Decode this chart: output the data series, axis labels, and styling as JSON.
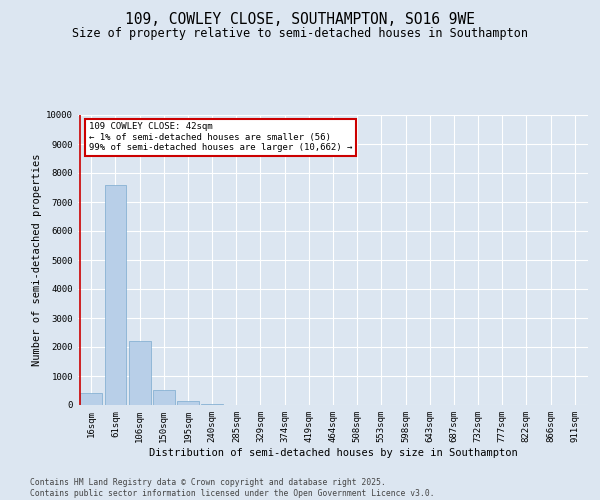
{
  "title": "109, COWLEY CLOSE, SOUTHAMPTON, SO16 9WE",
  "subtitle": "Size of property relative to semi-detached houses in Southampton",
  "xlabel": "Distribution of semi-detached houses by size in Southampton",
  "ylabel": "Number of semi-detached properties",
  "categories": [
    "16sqm",
    "61sqm",
    "106sqm",
    "150sqm",
    "195sqm",
    "240sqm",
    "285sqm",
    "329sqm",
    "374sqm",
    "419sqm",
    "464sqm",
    "508sqm",
    "553sqm",
    "598sqm",
    "643sqm",
    "687sqm",
    "732sqm",
    "777sqm",
    "822sqm",
    "866sqm",
    "911sqm"
  ],
  "values": [
    430,
    7600,
    2200,
    530,
    150,
    50,
    15,
    5,
    2,
    0,
    0,
    0,
    0,
    0,
    0,
    0,
    0,
    0,
    0,
    0,
    0
  ],
  "bar_color": "#b8cfe8",
  "bar_edge_color": "#7aaace",
  "annotation_title": "109 COWLEY CLOSE: 42sqm",
  "annotation_line1": "← 1% of semi-detached houses are smaller (56)",
  "annotation_line2": "99% of semi-detached houses are larger (10,662) →",
  "annotation_box_facecolor": "#ffffff",
  "annotation_box_edgecolor": "#cc0000",
  "highlight_line_color": "#cc0000",
  "ylim": [
    0,
    10000
  ],
  "yticks": [
    0,
    1000,
    2000,
    3000,
    4000,
    5000,
    6000,
    7000,
    8000,
    9000,
    10000
  ],
  "bg_color": "#dce6f1",
  "grid_color": "#ffffff",
  "footer_line1": "Contains HM Land Registry data © Crown copyright and database right 2025.",
  "footer_line2": "Contains public sector information licensed under the Open Government Licence v3.0.",
  "title_fontsize": 10.5,
  "subtitle_fontsize": 8.5,
  "axis_label_fontsize": 7.5,
  "tick_fontsize": 6.5,
  "annotation_fontsize": 6.5,
  "footer_fontsize": 5.8
}
